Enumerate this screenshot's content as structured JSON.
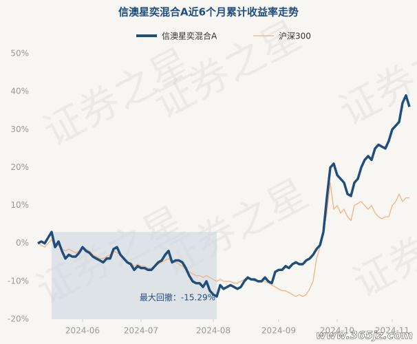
{
  "chart_data": {
    "type": "line",
    "title": "信澳星奕混合A近6个月累计收益率走势",
    "annotation": "最大回撤：-15.29%",
    "watermark": "证券之星",
    "site_watermark": "www.365jz.com",
    "xlim": [
      0,
      108
    ],
    "xticks": [
      {
        "value": 13,
        "label": "2024-06"
      },
      {
        "value": 30,
        "label": "2024-07"
      },
      {
        "value": 51,
        "label": "2024-08"
      },
      {
        "value": 70,
        "label": "2024-09"
      },
      {
        "value": 87,
        "label": "2024-10"
      },
      {
        "value": 103,
        "label": "2024-11"
      }
    ],
    "ylim": [
      -20,
      50
    ],
    "yticks": [
      {
        "value": -20,
        "label": "-20%"
      },
      {
        "value": -10,
        "label": "-10%"
      },
      {
        "value": 0,
        "label": "0%"
      },
      {
        "value": 10,
        "label": "10%"
      },
      {
        "value": 20,
        "label": "20%"
      },
      {
        "value": 30,
        "label": "30%"
      },
      {
        "value": 40,
        "label": "40%"
      },
      {
        "value": 50,
        "label": "50%"
      }
    ],
    "grid": false,
    "legend": "top",
    "series": [
      {
        "name": "信澳星奕混合A",
        "color": "#1f4e7d",
        "values": [
          0,
          0.5,
          0,
          1.5,
          3,
          -1,
          0.5,
          -2,
          -4,
          -3,
          -3.5,
          -3.5,
          -2.5,
          -1,
          -2,
          -2.5,
          -3.5,
          -4,
          -4.5,
          -5,
          -4,
          -4,
          -1.5,
          -1,
          -3,
          -4,
          -5,
          -5.5,
          -7,
          -6,
          -6.5,
          -6.5,
          -7,
          -7,
          -6,
          -5,
          -4.5,
          -3,
          -2,
          -5,
          -4.5,
          -4.5,
          -5,
          -6.5,
          -8.5,
          -10,
          -10.5,
          -10.5,
          -11.5,
          -10,
          -12.5,
          -13.5,
          -14,
          -11,
          -12,
          -11.5,
          -11,
          -11.5,
          -12,
          -11.5,
          -10,
          -9,
          -9.5,
          -9.5,
          -10,
          -10,
          -9,
          -10,
          -10.5,
          -7.5,
          -7,
          -7,
          -6,
          -6.5,
          -5.5,
          -5,
          -5.5,
          -5.5,
          -4.5,
          -4,
          -3,
          -1.5,
          -0.5,
          3,
          12,
          20,
          21,
          18,
          17,
          16,
          13,
          12.5,
          16,
          17,
          20,
          22,
          23,
          22,
          25,
          26,
          25.5,
          25,
          27,
          30,
          31,
          32,
          37,
          39,
          36
        ]
      },
      {
        "name": "沪深300",
        "color": "#f2b27c",
        "values": [
          0,
          -0.5,
          -1,
          0,
          1,
          -1,
          -0.5,
          -1.5,
          -2,
          -1.5,
          -2,
          -2.5,
          -2,
          -1,
          -1.5,
          -2,
          -3,
          -3.5,
          -4,
          -4,
          -3.5,
          -3,
          -2,
          -2.5,
          -3,
          -4,
          -5,
          -5,
          -6,
          -5.5,
          -6,
          -6,
          -6.5,
          -6.5,
          -6,
          -5.5,
          -5,
          -4.5,
          -4,
          -5,
          -5,
          -5.5,
          -6,
          -7,
          -7.5,
          -8,
          -8.5,
          -8.5,
          -9,
          -8.5,
          -9,
          -9.5,
          -10,
          -9.5,
          -10,
          -10,
          -10,
          -10.5,
          -10.5,
          -10,
          -9.5,
          -9,
          -9.5,
          -10,
          -10,
          -10,
          -10,
          -10.5,
          -11,
          -11.5,
          -12,
          -12.5,
          -12.5,
          -13,
          -13.5,
          -14,
          -13.5,
          -14,
          -13.5,
          -12,
          -10,
          -4,
          -1,
          3,
          8,
          16,
          9,
          10,
          8,
          9,
          7,
          6,
          10,
          10.5,
          11,
          10,
          9,
          10,
          8,
          7,
          6.5,
          7,
          7,
          10,
          11,
          13,
          11,
          12,
          12
        ]
      }
    ]
  }
}
